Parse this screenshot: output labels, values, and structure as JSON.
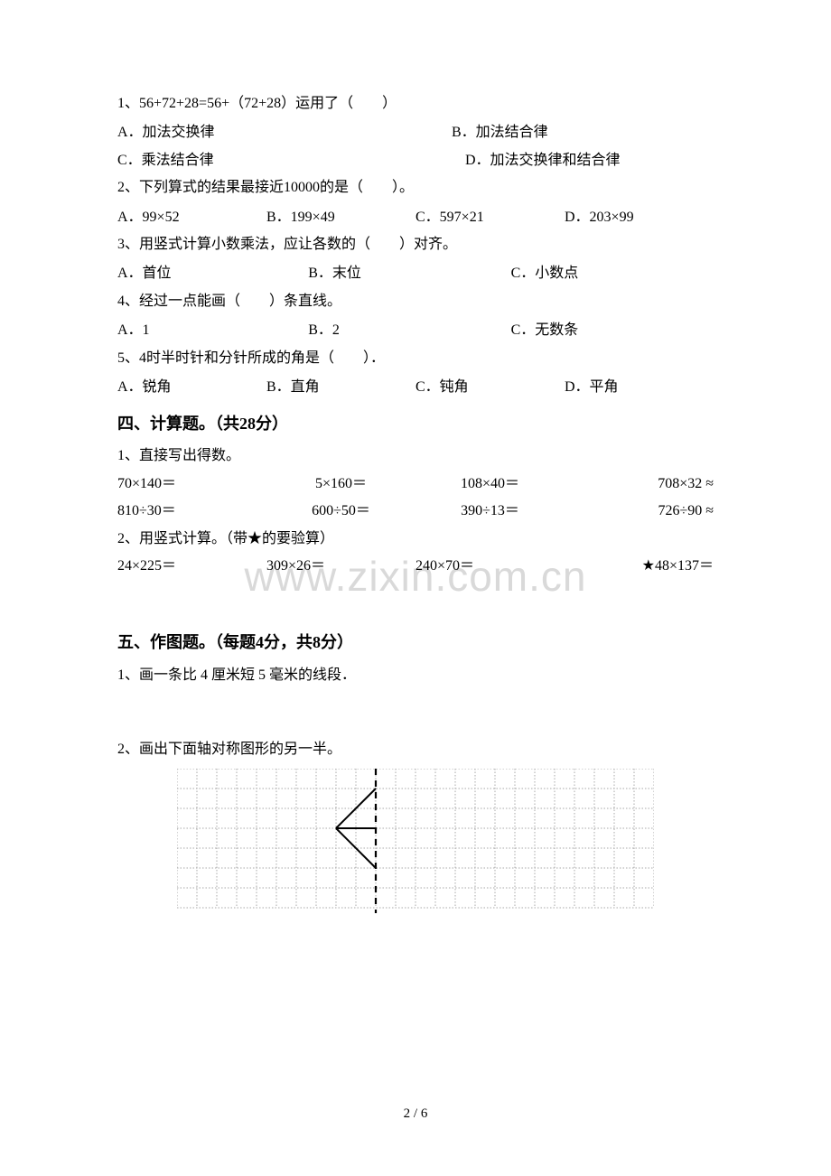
{
  "q1": {
    "text": "1、56+72+28=56+（72+28）运用了（　　）",
    "a": "A．加法交换律",
    "b": "B．加法结合律",
    "c": "C．乘法结合律",
    "d": "D．加法交换律和结合律"
  },
  "q2": {
    "text": "2、下列算式的结果最接近10000的是（　　）。",
    "a": "A．99×52",
    "b": "B．199×49",
    "c": "C．597×21",
    "d": "D．203×99"
  },
  "q3": {
    "text": "3、用竖式计算小数乘法，应让各数的（　　）对齐。",
    "a": "A．首位",
    "b": "B．末位",
    "c": "C．小数点"
  },
  "q4": {
    "text": "4、经过一点能画（　　）条直线。",
    "a": "A．1",
    "b": "B．2",
    "c": "C．无数条"
  },
  "q5": {
    "text": "5、4时半时针和分针所成的角是（　　）．",
    "a": "A．锐角",
    "b": "B．直角",
    "c": "C．钝角",
    "d": "D．平角"
  },
  "section4": {
    "title": "四、计算题。（共28分）",
    "p1": "1、直接写出得数。",
    "r1c1": "70×140＝",
    "r1c2": "5×160＝",
    "r1c3": "108×40＝",
    "r1c4": "708×32 ≈",
    "r2c1": "810÷30＝",
    "r2c2": "600÷50＝",
    "r2c3": "390÷13＝",
    "r2c4": "726÷90 ≈",
    "p2": "2、用竖式计算。（带★的要验算）",
    "v1": "24×225＝",
    "v2": "309×26＝",
    "v3": "240×70＝",
    "v4": "★48×137＝"
  },
  "section5": {
    "title": "五、作图题。（每题4分，共8分）",
    "p1": "1、画一条比 4 厘米短 5 毫米的线段．",
    "p2": "2、画出下面轴对称图形的另一半。"
  },
  "watermark": "www.zixin.com.cn",
  "footer": "2 / 6",
  "grid": {
    "cols": 24,
    "rows": 7,
    "cell": 22,
    "stroke": "#a8a8a8",
    "axis_stroke": "#000000",
    "tri_stroke": "#000000"
  }
}
